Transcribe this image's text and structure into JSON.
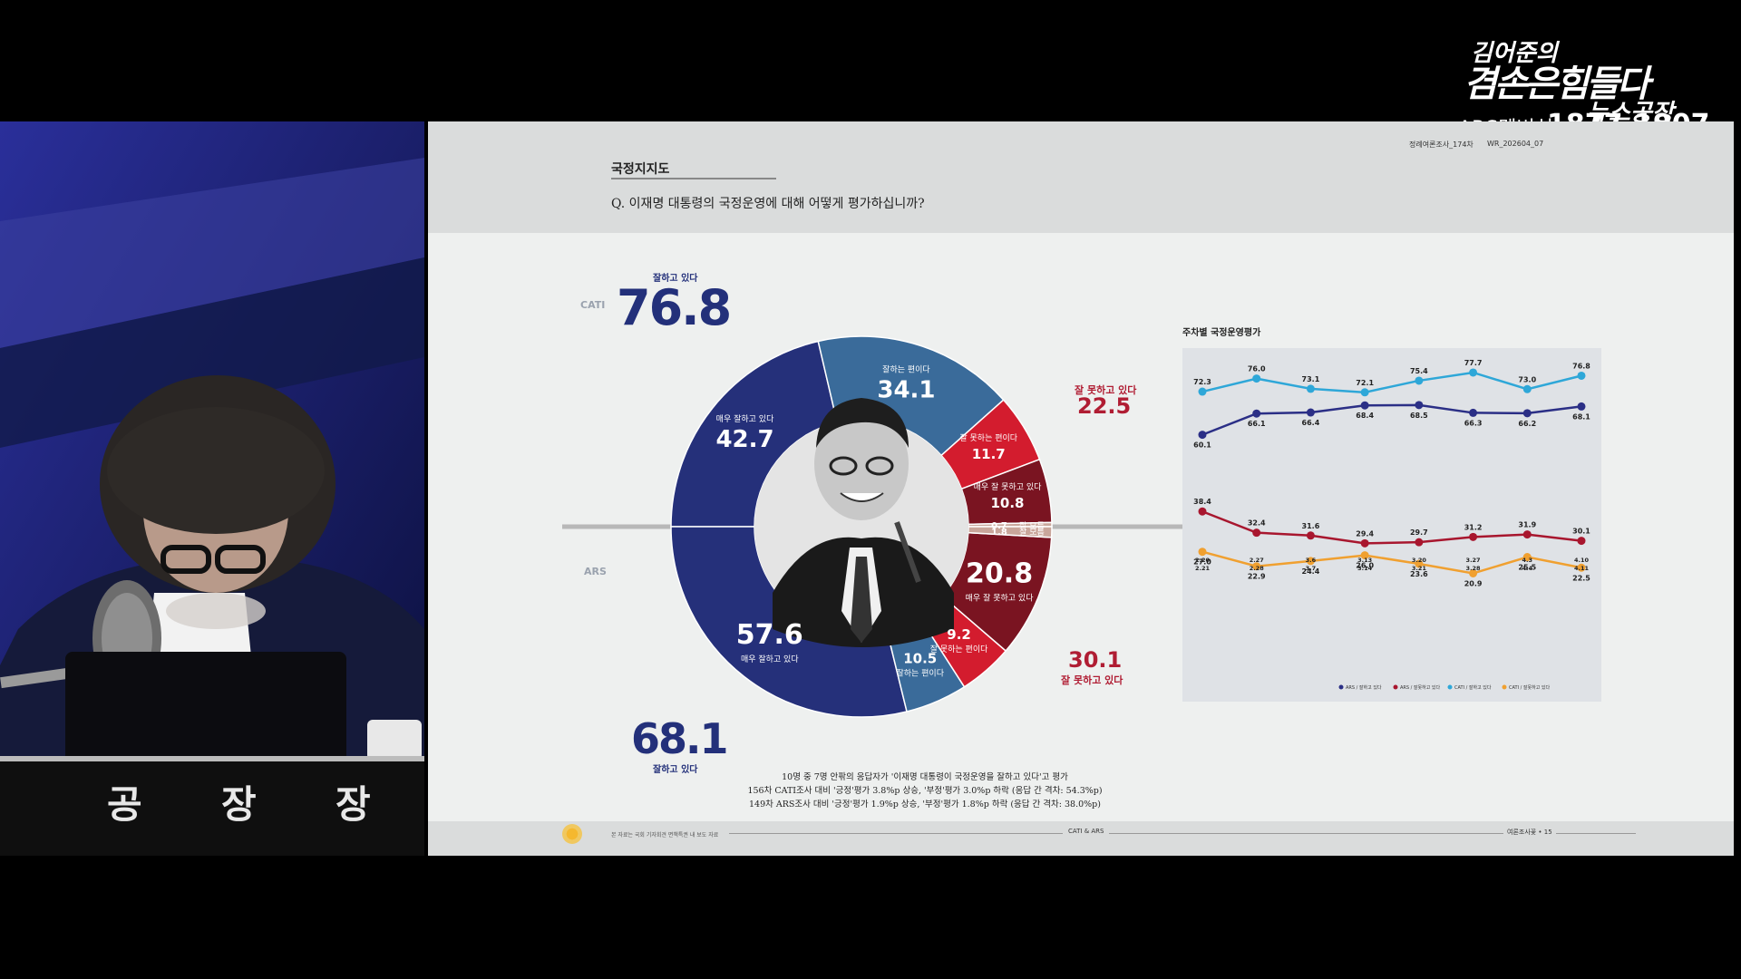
{
  "broadcast": {
    "logo_line1": "김어준의",
    "logo_line2": "겸손은힘들다",
    "logo_line3": "뉴스공장",
    "membership_label": "ARS멤버십",
    "membership_number": "1877-1907",
    "desk_sign": [
      "공",
      "장",
      "장"
    ]
  },
  "slide": {
    "header_meta_1": "정례여론조사_174차",
    "header_meta_2": "WR_202604_07",
    "section_title": "국정지지도",
    "question": "Q. 이재명 대통령의 국정운영에 대해 어떻게 평가하십니까?",
    "notes": [
      "10명 중 7명 안팎의 응답자가 '이재명 대통령이 국정운영을 잘하고 있다'고 평가",
      "156차 CATI조사 대비 '긍정'평가 3.8%p 상승, '부정'평가 3.0%p 하락 (응답 간 격차: 54.3%p)",
      "149차 ARS조사 대비 '긍정'평가 1.9%p 상승, '부정'평가 1.8%p 하락 (응답 간 격차: 38.0%p)"
    ],
    "footer_small": "본 자료는 국회 기자회견 면책특권 내 보도 자료",
    "footer_center": "CATI & ARS",
    "footer_right": "여론조사꽃 • 15"
  },
  "chart_data": [
    {
      "type": "pie",
      "variant": "split-donut",
      "top_label": "CATI",
      "bottom_label": "ARS",
      "cati": {
        "positive_total": 76.8,
        "positive_label": "잘하고 있다",
        "negative_total": 22.5,
        "negative_label": "잘 못하고 있다",
        "slices": [
          {
            "label": "매우 잘하고 있다",
            "value": 42.7,
            "color": "#25307a"
          },
          {
            "label": "잘하는 편이다",
            "value": 34.1,
            "color": "#3a6b9a"
          },
          {
            "label": "잘 못하는 편이다",
            "value": 11.7,
            "color": "#d31c2e"
          },
          {
            "label": "매우 잘 못하고 있다",
            "value": 10.8,
            "color": "#7a1421"
          },
          {
            "label": "잘 모름",
            "value": 0.7,
            "color": "#c9a69b"
          }
        ]
      },
      "ars": {
        "positive_total": 68.1,
        "positive_label": "잘하고 있다",
        "negative_total": 30.1,
        "negative_label": "잘 못하고 있다",
        "slices": [
          {
            "label": "매우 잘하고 있다",
            "value": 57.6,
            "color": "#25307a"
          },
          {
            "label": "잘하는 편이다",
            "value": 10.5,
            "color": "#3a6b9a"
          },
          {
            "label": "잘 못하는 편이다",
            "value": 9.2,
            "color": "#d31c2e"
          },
          {
            "label": "매우 잘 못하고 있다",
            "value": 20.8,
            "color": "#7a1421"
          },
          {
            "label": "잘 모름",
            "value": 1.8,
            "color": "#c9a69b"
          }
        ]
      }
    },
    {
      "type": "line",
      "title": "주차별 국정운영평가",
      "categories": [
        "2.20 2.21",
        "2.27 2.28",
        "3.6 3.7",
        "3.13 3.14",
        "3.20 3.21",
        "3.27 3.28",
        "4.3 4.4",
        "4.10 4.11"
      ],
      "ylim": [
        0,
        100
      ],
      "series": [
        {
          "name": "CATI / 잘하고 있다",
          "color": "#2ea7d8",
          "values": [
            72.3,
            76.0,
            73.1,
            72.1,
            75.4,
            77.7,
            73.0,
            76.8
          ]
        },
        {
          "name": "ARS / 잘하고 있다",
          "color": "#2b2f86",
          "values": [
            60.1,
            66.1,
            66.4,
            68.4,
            68.5,
            66.3,
            66.2,
            68.1
          ]
        },
        {
          "name": "ARS / 잘못하고 있다",
          "color": "#a8162e",
          "values": [
            38.4,
            32.4,
            31.6,
            29.4,
            29.7,
            31.2,
            31.9,
            30.1
          ]
        },
        {
          "name": "CATI / 잘못하고 있다",
          "color": "#f0a030",
          "values": [
            27.0,
            22.9,
            24.4,
            26.0,
            23.6,
            20.9,
            25.5,
            22.5
          ]
        }
      ]
    }
  ]
}
